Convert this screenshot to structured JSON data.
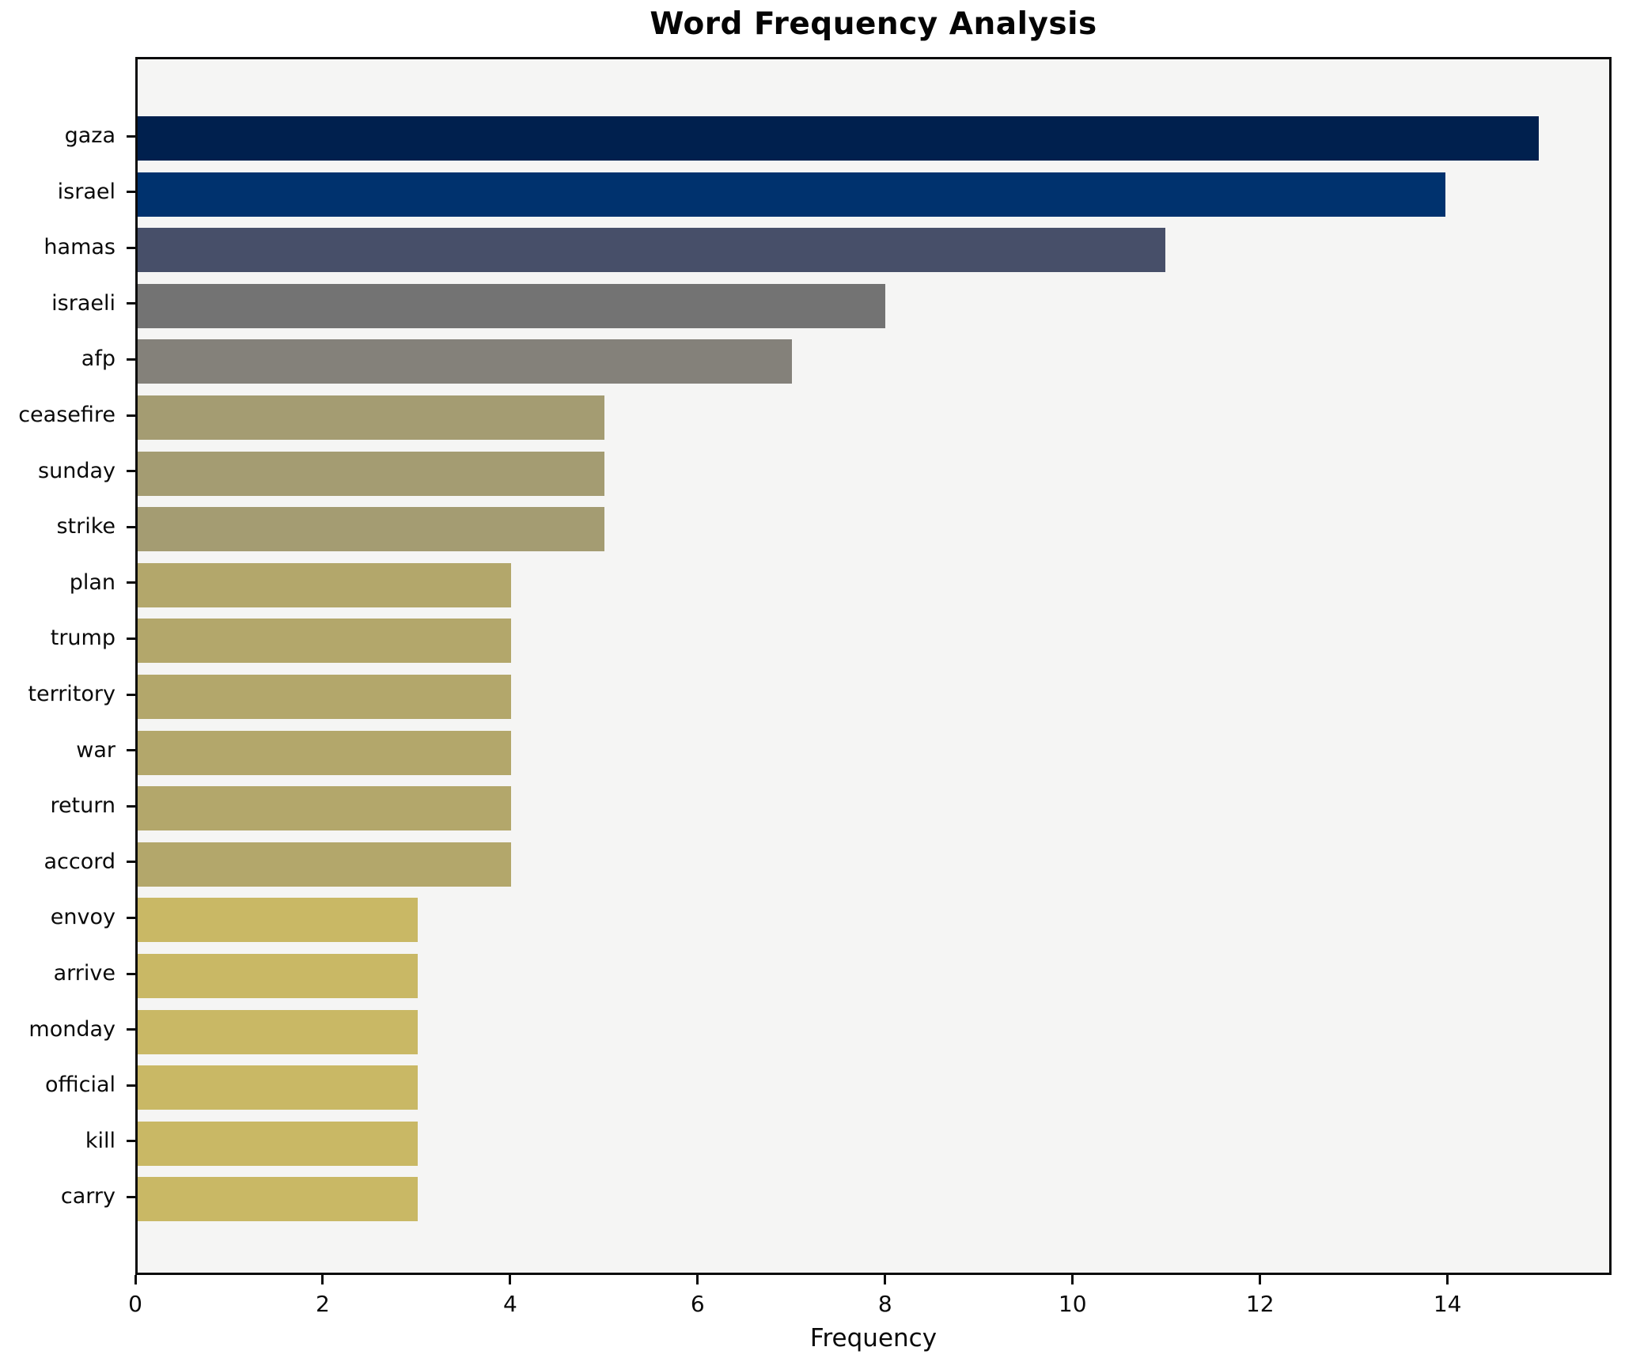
{
  "chart_data": {
    "type": "bar",
    "orientation": "horizontal",
    "title": "Word Frequency Analysis",
    "xlabel": "Frequency",
    "ylabel": "",
    "categories": [
      "gaza",
      "israel",
      "hamas",
      "israeli",
      "afp",
      "ceasefire",
      "sunday",
      "strike",
      "plan",
      "trump",
      "territory",
      "war",
      "return",
      "accord",
      "envoy",
      "arrive",
      "monday",
      "official",
      "kill",
      "carry"
    ],
    "values": [
      15,
      14,
      11,
      8,
      7,
      5,
      5,
      5,
      4,
      4,
      4,
      4,
      4,
      4,
      3,
      3,
      3,
      3,
      3,
      3
    ],
    "bar_colors": [
      "#00204e",
      "#00326e",
      "#474f69",
      "#737373",
      "#84817a",
      "#a49c72",
      "#a49c72",
      "#a49c72",
      "#b3a76b",
      "#b3a76b",
      "#b3a76b",
      "#b3a76b",
      "#b3a76b",
      "#b3a76b",
      "#c9b865",
      "#c9b865",
      "#c9b865",
      "#c9b865",
      "#c9b865",
      "#c9b865"
    ],
    "xlim": [
      0,
      15.75
    ],
    "xticks": [
      0,
      2,
      4,
      6,
      8,
      10,
      12,
      14
    ],
    "grid": "off",
    "legend": "none",
    "plot_bg_color": "#f5f5f4",
    "figure_bg_color": "#ffffff",
    "spine_color": "#0c0c0c"
  }
}
